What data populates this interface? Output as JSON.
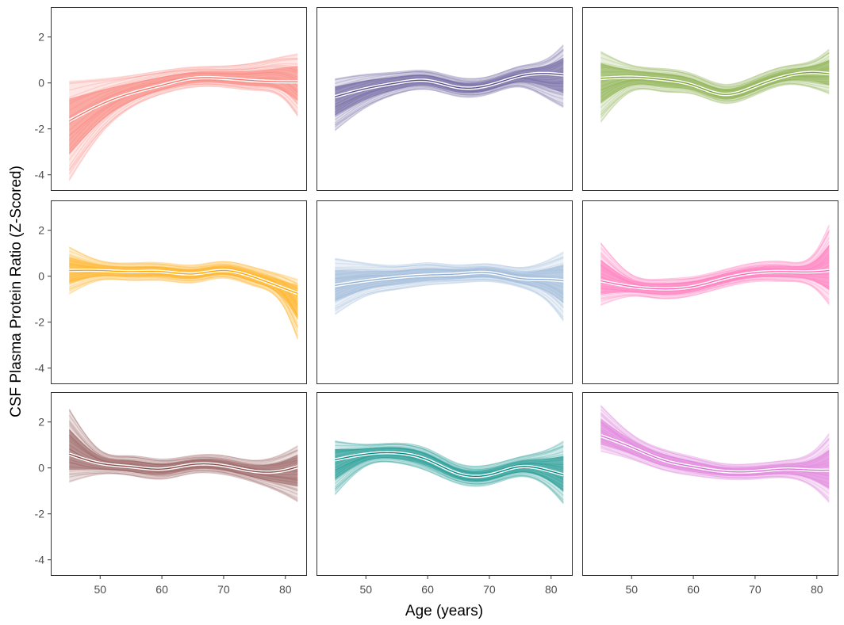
{
  "chart_data": {
    "type": "line",
    "xlabel": "Age (years)",
    "ylabel": "CSF Plasma Protein Ratio (Z-Scored)",
    "xlim": [
      42,
      83.5
    ],
    "ylim": [
      -4.7,
      3.3
    ],
    "x_ticks": [
      50,
      60,
      70,
      80
    ],
    "y_ticks": [
      2,
      0,
      -2,
      -4
    ],
    "x_tick_labels": [
      "50",
      "60",
      "70",
      "80"
    ],
    "y_tick_labels": [
      "2",
      "0",
      "-2",
      "-4"
    ],
    "grid": false,
    "legend": "none",
    "layout": {
      "rows": 3,
      "cols": 3
    },
    "x": [
      45,
      50,
      55,
      60,
      65,
      70,
      75,
      80,
      82
    ],
    "panels": [
      {
        "color": "#F8766D",
        "values": [
          -1.65,
          -0.95,
          -0.45,
          -0.1,
          0.2,
          0.2,
          0.1,
          0.05,
          0.05
        ],
        "band_low": [
          -4.3,
          -2.3,
          -1.1,
          -0.5,
          -0.2,
          -0.2,
          -0.35,
          -0.8,
          -1.5
        ],
        "band_high": [
          0.1,
          0.2,
          0.35,
          0.55,
          0.7,
          0.75,
          0.9,
          1.2,
          1.3
        ]
      },
      {
        "color": "#5B5093",
        "values": [
          -0.6,
          -0.25,
          0.0,
          0.1,
          -0.2,
          -0.1,
          0.3,
          0.4,
          0.35
        ],
        "band_low": [
          -2.1,
          -1.1,
          -0.5,
          -0.3,
          -0.6,
          -0.5,
          -0.2,
          -0.8,
          -1.1
        ],
        "band_high": [
          0.2,
          0.4,
          0.5,
          0.55,
          0.25,
          0.3,
          0.75,
          1.2,
          1.7
        ]
      },
      {
        "color": "#7BA535",
        "values": [
          0.2,
          0.25,
          0.15,
          -0.1,
          -0.5,
          -0.15,
          0.3,
          0.45,
          0.4
        ],
        "band_low": [
          -1.75,
          -0.4,
          -0.4,
          -0.5,
          -0.9,
          -0.55,
          -0.1,
          -0.3,
          -0.5
        ],
        "band_high": [
          1.4,
          0.8,
          0.65,
          0.4,
          -0.05,
          0.3,
          0.75,
          1.1,
          1.5
        ]
      },
      {
        "color": "#FFA500",
        "values": [
          0.25,
          0.25,
          0.2,
          0.2,
          0.1,
          0.25,
          -0.05,
          -0.55,
          -0.75
        ],
        "band_low": [
          -0.8,
          -0.2,
          -0.2,
          -0.2,
          -0.3,
          -0.1,
          -0.45,
          -1.5,
          -2.8
        ],
        "band_high": [
          1.3,
          0.7,
          0.6,
          0.6,
          0.5,
          0.65,
          0.4,
          0.05,
          -0.1
        ]
      },
      {
        "color": "#8FAFD4",
        "values": [
          -0.4,
          -0.2,
          -0.05,
          0.05,
          0.1,
          0.15,
          -0.1,
          -0.15,
          -0.2
        ],
        "band_low": [
          -1.7,
          -0.9,
          -0.6,
          -0.4,
          -0.3,
          -0.25,
          -0.5,
          -1.3,
          -2.0
        ],
        "band_high": [
          0.8,
          0.6,
          0.5,
          0.6,
          0.5,
          0.55,
          0.4,
          0.8,
          1.1
        ]
      },
      {
        "color": "#FF66B3",
        "values": [
          -0.2,
          -0.45,
          -0.55,
          -0.45,
          -0.1,
          0.15,
          0.2,
          0.2,
          0.25
        ],
        "band_low": [
          -1.3,
          -0.9,
          -1.0,
          -0.85,
          -0.5,
          -0.25,
          -0.25,
          -0.65,
          -1.3
        ],
        "band_high": [
          1.5,
          0.1,
          -0.1,
          0.0,
          0.3,
          0.6,
          0.65,
          1.2,
          2.3
        ]
      },
      {
        "color": "#8B4B4B",
        "values": [
          0.6,
          0.2,
          0.05,
          -0.05,
          0.15,
          0.1,
          -0.15,
          -0.1,
          0.05
        ],
        "band_low": [
          -0.65,
          -0.3,
          -0.35,
          -0.5,
          -0.25,
          -0.3,
          -0.65,
          -1.2,
          -1.5
        ],
        "band_high": [
          2.6,
          0.8,
          0.55,
          0.4,
          0.55,
          0.55,
          0.35,
          0.7,
          1.0
        ]
      },
      {
        "color": "#008B83",
        "values": [
          0.35,
          0.6,
          0.65,
          0.35,
          -0.25,
          -0.3,
          0.05,
          -0.15,
          -0.3
        ],
        "band_low": [
          -1.2,
          0.05,
          0.2,
          -0.15,
          -0.7,
          -0.75,
          -0.4,
          -1.0,
          -1.6
        ],
        "band_high": [
          1.2,
          1.05,
          1.1,
          0.85,
          0.2,
          0.15,
          0.5,
          0.9,
          1.2
        ]
      },
      {
        "color": "#DA70D6",
        "values": [
          1.4,
          0.9,
          0.35,
          0.05,
          -0.15,
          -0.15,
          -0.05,
          -0.1,
          -0.1
        ],
        "band_low": [
          0.7,
          0.35,
          -0.1,
          -0.35,
          -0.5,
          -0.5,
          -0.45,
          -1.0,
          -1.55
        ],
        "band_high": [
          2.75,
          1.5,
          0.85,
          0.5,
          0.2,
          0.2,
          0.35,
          0.9,
          1.55
        ]
      }
    ]
  }
}
